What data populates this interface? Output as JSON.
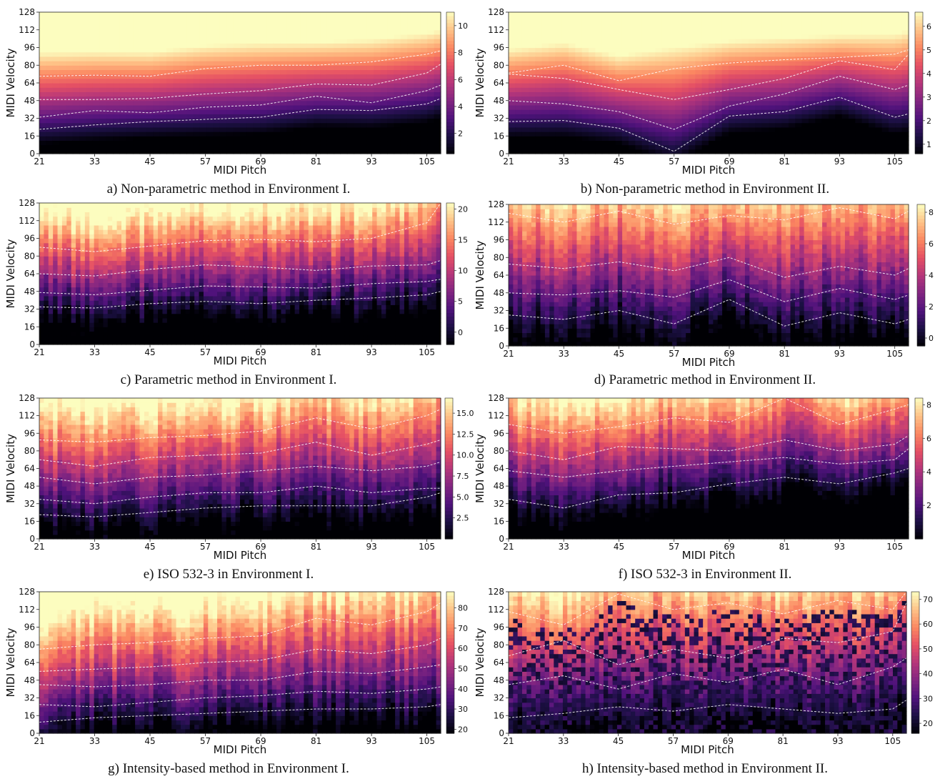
{
  "chart_data": [
    {
      "type": "heatmap",
      "panel": "a",
      "caption": "a) Non-parametric method in Environment I.",
      "xlabel": "MIDI Pitch",
      "ylabel": "MIDI Velocity",
      "xticks": [
        "21",
        "33",
        "45",
        "57",
        "69",
        "81",
        "93",
        "105"
      ],
      "yticks": [
        "0",
        "16",
        "32",
        "48",
        "64",
        "80",
        "96",
        "112",
        "128"
      ],
      "xlim": [
        21,
        108
      ],
      "ylim": [
        0,
        128
      ],
      "colorbar_ticks": [
        "2",
        "4",
        "6",
        "8",
        "10"
      ],
      "colorbar_range": [
        0.5,
        11
      ],
      "colormap": "magma",
      "style": "smooth",
      "contours": [
        {
          "x": [
            21,
            33,
            45,
            57,
            69,
            81,
            93,
            105,
            108
          ],
          "y": [
            70,
            71,
            70,
            77,
            80,
            80,
            83,
            90,
            93
          ]
        },
        {
          "x": [
            21,
            33,
            45,
            57,
            69,
            81,
            93,
            105,
            108
          ],
          "y": [
            49,
            49,
            50,
            54,
            57,
            63,
            62,
            73,
            81
          ]
        },
        {
          "x": [
            21,
            33,
            45,
            57,
            69,
            81,
            93,
            105,
            108
          ],
          "y": [
            33,
            39,
            37,
            42,
            44,
            52,
            46,
            57,
            62
          ]
        },
        {
          "x": [
            21,
            33,
            45,
            57,
            69,
            81,
            93,
            105,
            108
          ],
          "y": [
            22,
            26,
            29,
            31,
            33,
            40,
            39,
            45,
            50
          ]
        }
      ]
    },
    {
      "type": "heatmap",
      "panel": "b",
      "caption": "b) Non-parametric method in Environment II.",
      "xlabel": "MIDI Pitch",
      "ylabel": "MIDI Velocity",
      "xticks": [
        "21",
        "33",
        "45",
        "57",
        "69",
        "81",
        "93",
        "105"
      ],
      "yticks": [
        "0",
        "16",
        "32",
        "48",
        "64",
        "80",
        "96",
        "112",
        "128"
      ],
      "xlim": [
        21,
        108
      ],
      "ylim": [
        0,
        128
      ],
      "colorbar_ticks": [
        "1",
        "2",
        "3",
        "4",
        "5",
        "6"
      ],
      "colorbar_range": [
        0.6,
        6.6
      ],
      "colormap": "magma",
      "style": "smooth",
      "contours": [
        {
          "x": [
            21,
            33,
            45,
            57,
            69,
            81,
            93,
            105,
            108
          ],
          "y": [
            73,
            80,
            66,
            77,
            82,
            85,
            87,
            90,
            94
          ]
        },
        {
          "x": [
            21,
            33,
            45,
            57,
            69,
            81,
            93,
            105,
            108
          ],
          "y": [
            72,
            68,
            58,
            49,
            58,
            68,
            84,
            76,
            90
          ]
        },
        {
          "x": [
            21,
            33,
            45,
            57,
            69,
            81,
            93,
            105,
            108
          ],
          "y": [
            48,
            45,
            38,
            22,
            43,
            54,
            70,
            58,
            62
          ]
        },
        {
          "x": [
            21,
            33,
            45,
            57,
            69,
            81,
            93,
            105,
            108
          ],
          "y": [
            29,
            30,
            23,
            2,
            34,
            38,
            51,
            33,
            36
          ]
        }
      ]
    },
    {
      "type": "heatmap",
      "panel": "c",
      "caption": "c) Parametric method in Environment I.",
      "xlabel": "MIDI Pitch",
      "ylabel": "MIDI Velocity",
      "xticks": [
        "21",
        "33",
        "45",
        "57",
        "69",
        "81",
        "93",
        "105"
      ],
      "yticks": [
        "0",
        "16",
        "32",
        "48",
        "64",
        "80",
        "96",
        "112",
        "128"
      ],
      "xlim": [
        21,
        108
      ],
      "ylim": [
        0,
        128
      ],
      "colorbar_ticks": [
        "0",
        "5",
        "10",
        "15",
        "20"
      ],
      "colorbar_range": [
        -2,
        21
      ],
      "colormap": "magma",
      "style": "noisy",
      "contours": [
        {
          "x": [
            21,
            33,
            45,
            57,
            69,
            81,
            93,
            105,
            108
          ],
          "y": [
            88,
            84,
            89,
            94,
            95,
            93,
            96,
            110,
            128
          ]
        },
        {
          "x": [
            21,
            33,
            45,
            57,
            69,
            81,
            93,
            105,
            108
          ],
          "y": [
            64,
            62,
            68,
            72,
            70,
            67,
            71,
            72,
            76
          ]
        },
        {
          "x": [
            21,
            33,
            45,
            57,
            69,
            81,
            93,
            105,
            108
          ],
          "y": [
            47,
            45,
            49,
            53,
            52,
            51,
            55,
            57,
            59
          ]
        },
        {
          "x": [
            21,
            33,
            45,
            57,
            69,
            81,
            93,
            105,
            108
          ],
          "y": [
            34,
            33,
            37,
            39,
            37,
            40,
            42,
            45,
            48
          ]
        }
      ]
    },
    {
      "type": "heatmap",
      "panel": "d",
      "caption": "d) Parametric method in Environment II.",
      "xlabel": "MIDI Pitch",
      "ylabel": "MIDI Velocity",
      "xticks": [
        "21",
        "33",
        "45",
        "57",
        "69",
        "81",
        "93",
        "105"
      ],
      "yticks": [
        "0",
        "16",
        "32",
        "48",
        "64",
        "80",
        "96",
        "112",
        "128"
      ],
      "xlim": [
        21,
        108
      ],
      "ylim": [
        0,
        128
      ],
      "colorbar_ticks": [
        "0",
        "2",
        "4",
        "6",
        "8"
      ],
      "colorbar_range": [
        -0.5,
        8.5
      ],
      "colormap": "magma",
      "style": "noisy",
      "contours": [
        {
          "x": [
            21,
            33,
            45,
            57,
            69,
            81,
            93,
            105,
            108
          ],
          "y": [
            120,
            112,
            122,
            110,
            118,
            114,
            125,
            115,
            122
          ]
        },
        {
          "x": [
            21,
            33,
            45,
            57,
            69,
            81,
            93,
            105,
            108
          ],
          "y": [
            74,
            70,
            76,
            68,
            80,
            62,
            72,
            64,
            70
          ]
        },
        {
          "x": [
            21,
            33,
            45,
            57,
            69,
            81,
            93,
            105,
            108
          ],
          "y": [
            48,
            46,
            50,
            44,
            60,
            40,
            52,
            42,
            46
          ]
        },
        {
          "x": [
            21,
            33,
            45,
            57,
            69,
            81,
            93,
            105,
            108
          ],
          "y": [
            28,
            24,
            32,
            20,
            42,
            18,
            30,
            20,
            24
          ]
        }
      ]
    },
    {
      "type": "heatmap",
      "panel": "e",
      "caption": "e) ISO 532-3 in Environment I.",
      "xlabel": "MIDI Pitch",
      "ylabel": "MIDI Velocity",
      "xticks": [
        "21",
        "33",
        "45",
        "57",
        "69",
        "81",
        "93",
        "105"
      ],
      "yticks": [
        "0",
        "16",
        "32",
        "48",
        "64",
        "80",
        "96",
        "112",
        "128"
      ],
      "xlim": [
        21,
        108
      ],
      "ylim": [
        0,
        128
      ],
      "colorbar_ticks": [
        "2.5",
        "5.0",
        "7.5",
        "10.0",
        "12.5",
        "15.0"
      ],
      "colorbar_range": [
        0,
        16.8
      ],
      "colormap": "magma",
      "style": "noisy",
      "contours": [
        {
          "x": [
            21,
            33,
            45,
            57,
            69,
            81,
            93,
            105,
            108
          ],
          "y": [
            90,
            88,
            92,
            94,
            98,
            110,
            100,
            112,
            118
          ]
        },
        {
          "x": [
            21,
            33,
            45,
            57,
            69,
            81,
            93,
            105,
            108
          ],
          "y": [
            72,
            66,
            74,
            76,
            78,
            88,
            76,
            86,
            90
          ]
        },
        {
          "x": [
            21,
            33,
            45,
            57,
            69,
            81,
            93,
            105,
            108
          ],
          "y": [
            56,
            50,
            56,
            58,
            62,
            66,
            62,
            66,
            70
          ]
        },
        {
          "x": [
            21,
            33,
            45,
            57,
            69,
            81,
            93,
            105,
            108
          ],
          "y": [
            36,
            32,
            38,
            42,
            42,
            48,
            42,
            46,
            46
          ]
        },
        {
          "x": [
            21,
            33,
            45,
            57,
            69,
            81,
            93,
            105,
            108
          ],
          "y": [
            22,
            20,
            24,
            28,
            30,
            30,
            30,
            38,
            42
          ]
        }
      ]
    },
    {
      "type": "heatmap",
      "panel": "f",
      "caption": "f) ISO 532-3 in Environment II.",
      "xlabel": "MIDI Pitch",
      "ylabel": "MIDI Velocity",
      "xticks": [
        "21",
        "33",
        "45",
        "57",
        "69",
        "81",
        "93",
        "105"
      ],
      "yticks": [
        "0",
        "16",
        "32",
        "48",
        "64",
        "80",
        "96",
        "112",
        "128"
      ],
      "xlim": [
        21,
        108
      ],
      "ylim": [
        0,
        128
      ],
      "colorbar_ticks": [
        "2",
        "4",
        "6",
        "8"
      ],
      "colorbar_range": [
        0,
        8.4
      ],
      "colormap": "magma",
      "style": "noisy",
      "contours": [
        {
          "x": [
            21,
            33,
            45,
            57,
            69,
            81,
            93,
            105,
            108
          ],
          "y": [
            104,
            96,
            102,
            110,
            106,
            128,
            104,
            118,
            122
          ]
        },
        {
          "x": [
            21,
            33,
            45,
            57,
            69,
            81,
            93,
            105,
            108
          ],
          "y": [
            80,
            72,
            84,
            82,
            80,
            90,
            80,
            86,
            94
          ]
        },
        {
          "x": [
            21,
            33,
            45,
            57,
            69,
            81,
            93,
            105,
            108
          ],
          "y": [
            62,
            56,
            62,
            66,
            70,
            74,
            68,
            72,
            82
          ]
        },
        {
          "x": [
            21,
            33,
            45,
            57,
            69,
            81,
            93,
            105,
            108
          ],
          "y": [
            36,
            28,
            40,
            42,
            50,
            56,
            50,
            60,
            64
          ]
        }
      ]
    },
    {
      "type": "heatmap",
      "panel": "g",
      "caption": "g) Intensity-based method in Environment I.",
      "xlabel": "MIDI Pitch",
      "ylabel": "MIDI Velocity",
      "xticks": [
        "21",
        "33",
        "45",
        "57",
        "69",
        "81",
        "93",
        "105"
      ],
      "yticks": [
        "0",
        "16",
        "32",
        "48",
        "64",
        "80",
        "96",
        "112",
        "128"
      ],
      "xlim": [
        21,
        108
      ],
      "ylim": [
        0,
        128
      ],
      "colorbar_ticks": [
        "20",
        "30",
        "40",
        "50",
        "60",
        "70",
        "80"
      ],
      "colorbar_range": [
        18,
        88
      ],
      "colormap": "magma",
      "style": "noisy",
      "contours": [
        {
          "x": [
            21,
            33,
            45,
            57,
            69,
            81,
            93,
            105,
            108
          ],
          "y": [
            76,
            80,
            82,
            86,
            88,
            104,
            98,
            110,
            118
          ]
        },
        {
          "x": [
            21,
            33,
            45,
            57,
            69,
            81,
            93,
            105,
            108
          ],
          "y": [
            56,
            58,
            60,
            64,
            66,
            76,
            72,
            80,
            86
          ]
        },
        {
          "x": [
            21,
            33,
            45,
            57,
            69,
            81,
            93,
            105,
            108
          ],
          "y": [
            44,
            42,
            44,
            48,
            48,
            56,
            54,
            60,
            62
          ]
        },
        {
          "x": [
            21,
            33,
            45,
            57,
            69,
            81,
            93,
            105,
            108
          ],
          "y": [
            26,
            24,
            28,
            32,
            34,
            38,
            36,
            40,
            42
          ]
        },
        {
          "x": [
            21,
            33,
            45,
            57,
            69,
            81,
            93,
            105,
            108
          ],
          "y": [
            10,
            14,
            16,
            18,
            20,
            22,
            22,
            24,
            26
          ]
        }
      ]
    },
    {
      "type": "heatmap",
      "panel": "h",
      "caption": "h) Intensity-based method in Environment II.",
      "xlabel": "MIDI Pitch",
      "ylabel": "MIDI Velocity",
      "xticks": [
        "21",
        "33",
        "45",
        "57",
        "69",
        "81",
        "93",
        "105"
      ],
      "yticks": [
        "0",
        "16",
        "32",
        "48",
        "64",
        "80",
        "96",
        "112",
        "128"
      ],
      "xlim": [
        21,
        108
      ],
      "ylim": [
        0,
        128
      ],
      "colorbar_ticks": [
        "20",
        "30",
        "40",
        "50",
        "60",
        "70"
      ],
      "colorbar_range": [
        16,
        73
      ],
      "colormap": "magma",
      "style": "blocky",
      "contours": [
        {
          "x": [
            21,
            33,
            45,
            57,
            69,
            81,
            93,
            105,
            108
          ],
          "y": [
            110,
            98,
            126,
            112,
            118,
            108,
            120,
            112,
            128
          ]
        },
        {
          "x": [
            21,
            33,
            45,
            57,
            69,
            81,
            93,
            105,
            108
          ],
          "y": [
            70,
            84,
            62,
            76,
            68,
            86,
            82,
            92,
            118
          ]
        },
        {
          "x": [
            21,
            33,
            45,
            57,
            69,
            81,
            93,
            105,
            108
          ],
          "y": [
            44,
            52,
            40,
            54,
            46,
            58,
            44,
            60,
            68
          ]
        },
        {
          "x": [
            21,
            33,
            45,
            57,
            69,
            81,
            93,
            105,
            108
          ],
          "y": [
            14,
            18,
            24,
            20,
            26,
            22,
            18,
            22,
            30
          ]
        }
      ]
    }
  ]
}
